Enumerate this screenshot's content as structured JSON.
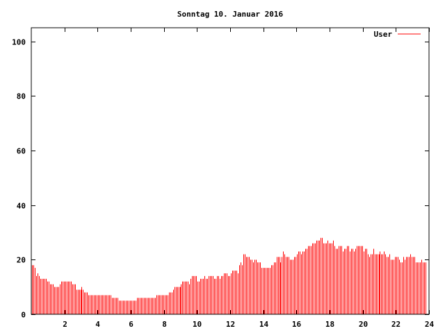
{
  "chart_data": {
    "type": "bar",
    "title": "Sonntag 10. Januar 2016",
    "xlabel": "",
    "ylabel": "",
    "xlim": [
      0,
      24
    ],
    "ylim": [
      0,
      105
    ],
    "xticks": [
      "2",
      "4",
      "6",
      "8",
      "10",
      "12",
      "14",
      "16",
      "18",
      "20",
      "22",
      "24"
    ],
    "yticks": [
      "0",
      "20",
      "40",
      "60",
      "80",
      "100"
    ],
    "grid": false,
    "legend_position": "top-right",
    "series": [
      {
        "name": "User",
        "color": "#ff0000",
        "values": [
          18,
          18,
          17,
          14,
          15,
          14,
          13,
          13,
          13,
          13,
          13,
          12,
          12,
          11,
          11,
          11,
          10,
          10,
          10,
          10,
          11,
          12,
          12,
          12,
          12,
          12,
          12,
          12,
          12,
          11,
          11,
          11,
          9,
          9,
          9,
          9,
          10,
          9,
          8,
          8,
          8,
          7,
          7,
          7,
          7,
          7,
          7,
          7,
          7,
          7,
          7,
          7,
          7,
          7,
          7,
          7,
          7,
          7,
          6,
          6,
          6,
          6,
          6,
          5,
          5,
          5,
          5,
          5,
          5,
          5,
          5,
          5,
          5,
          5,
          5,
          5,
          6,
          6,
          6,
          6,
          6,
          6,
          6,
          6,
          6,
          6,
          6,
          6,
          6,
          6,
          7,
          7,
          7,
          7,
          7,
          7,
          7,
          7,
          7,
          8,
          8,
          8,
          9,
          10,
          10,
          10,
          10,
          10,
          11,
          12,
          12,
          12,
          12,
          12,
          11,
          13,
          14,
          14,
          14,
          14,
          12,
          12,
          13,
          13,
          13,
          14,
          13,
          13,
          14,
          14,
          14,
          14,
          13,
          13,
          14,
          14,
          13,
          14,
          14,
          15,
          15,
          15,
          14,
          14,
          15,
          16,
          16,
          16,
          16,
          15,
          18,
          19,
          18,
          22,
          22,
          21,
          21,
          21,
          20,
          20,
          19,
          20,
          20,
          19,
          19,
          19,
          17,
          17,
          17,
          17,
          17,
          17,
          17,
          18,
          18,
          19,
          19,
          21,
          21,
          21,
          19,
          21,
          23,
          22,
          21,
          21,
          21,
          20,
          20,
          20,
          21,
          21,
          22,
          23,
          23,
          22,
          23,
          23,
          24,
          24,
          25,
          25,
          25,
          26,
          26,
          26,
          27,
          27,
          27,
          28,
          28,
          26,
          26,
          26,
          27,
          26,
          26,
          26,
          27,
          25,
          24,
          24,
          25,
          25,
          25,
          23,
          24,
          24,
          25,
          25,
          23,
          24,
          24,
          23,
          24,
          25,
          25,
          25,
          25,
          25,
          23,
          24,
          24,
          22,
          21,
          22,
          22,
          24,
          22,
          22,
          22,
          22,
          23,
          22,
          22,
          23,
          22,
          21,
          21,
          22,
          20,
          20,
          20,
          21,
          21,
          21,
          20,
          19,
          19,
          21,
          20,
          21,
          21,
          21,
          22,
          21,
          21,
          21,
          19,
          19,
          19,
          19,
          20,
          19,
          19,
          19
        ]
      }
    ]
  }
}
